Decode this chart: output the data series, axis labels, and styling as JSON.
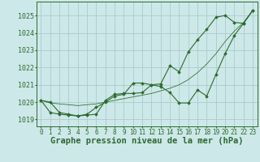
{
  "title": "Graphe pression niveau de la mer (hPa)",
  "bg_color": "#cde8e8",
  "grid_color": "#aacccc",
  "line_color": "#2d6a2d",
  "marker_color": "#2d6a2d",
  "ylim": [
    1018.6,
    1025.8
  ],
  "yticks": [
    1019,
    1020,
    1021,
    1022,
    1023,
    1024,
    1025
  ],
  "xlim": [
    -0.5,
    23.5
  ],
  "xticks": [
    0,
    1,
    2,
    3,
    4,
    5,
    6,
    7,
    8,
    9,
    10,
    11,
    12,
    13,
    14,
    15,
    16,
    17,
    18,
    19,
    20,
    21,
    22,
    23
  ],
  "series1": [
    1020.1,
    1020.0,
    1019.4,
    1019.3,
    1019.2,
    1019.25,
    1019.3,
    1020.1,
    1020.45,
    1020.5,
    1020.5,
    1020.55,
    1021.0,
    1020.9,
    1020.55,
    1019.95,
    1019.95,
    1020.7,
    1020.35,
    1021.6,
    1022.8,
    1023.85,
    1024.55,
    1025.3
  ],
  "series2": [
    1020.1,
    1019.4,
    1019.3,
    1019.25,
    1019.2,
    1019.3,
    1019.7,
    1020.0,
    1020.35,
    1020.45,
    1021.1,
    1021.1,
    1021.0,
    1021.05,
    1022.1,
    1021.75,
    1022.9,
    1023.6,
    1024.2,
    1024.9,
    1025.0,
    1024.6,
    1024.55,
    1025.3
  ],
  "series3": [
    1020.1,
    1019.95,
    1019.9,
    1019.85,
    1019.8,
    1019.85,
    1019.9,
    1020.0,
    1020.1,
    1020.2,
    1020.3,
    1020.4,
    1020.5,
    1020.65,
    1020.8,
    1021.0,
    1021.3,
    1021.7,
    1022.2,
    1022.8,
    1023.5,
    1024.1,
    1024.6,
    1025.3
  ],
  "title_fontsize": 7.5,
  "tick_fontsize": 5.5,
  "ylabel_fontsize": 6,
  "lw": 0.8
}
